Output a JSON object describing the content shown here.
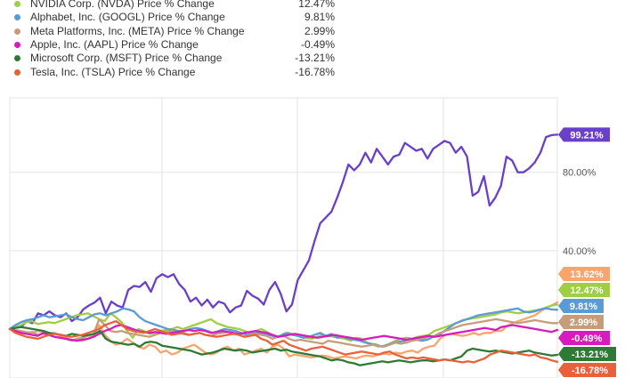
{
  "chart_data": {
    "type": "line",
    "legend_position": "top-left",
    "grid": true,
    "y_unit": "%",
    "ylim": [
      -25,
      118
    ],
    "y_ticks": [
      {
        "value": 80,
        "label": "80.00%"
      },
      {
        "value": 40,
        "label": "40.00%"
      }
    ],
    "series": [
      {
        "key": "amzn",
        "name": "",
        "color": "#6a3fc9",
        "end_label": "99.21%",
        "values": [
          0,
          1.5,
          1,
          4,
          3,
          8,
          7,
          9,
          7,
          6,
          8,
          4,
          6,
          10,
          12,
          13.5,
          16,
          8,
          14,
          12,
          11,
          20,
          22,
          21.5,
          24,
          19,
          26,
          28,
          26.5,
          28,
          23,
          20,
          14,
          16,
          12,
          15,
          11,
          14,
          13,
          8.5,
          11,
          12,
          19.5,
          17,
          15.5,
          12.5,
          20,
          24,
          18,
          9,
          12.5,
          25,
          30,
          35,
          45,
          54,
          57,
          60,
          67,
          75,
          84,
          81,
          84,
          90,
          85,
          92,
          88,
          84,
          88,
          89,
          95,
          93,
          91,
          92,
          87,
          92,
          94,
          96,
          95,
          90,
          93,
          88,
          68,
          70,
          78,
          63,
          67,
          73,
          88,
          86,
          80,
          80,
          82,
          85,
          90,
          98,
          99,
          99.21
        ]
      },
      {
        "key": "amd",
        "name": "",
        "color": "#f7a46d",
        "end_label": "13.62%",
        "values": [
          0,
          -0.5,
          -1,
          -1.5,
          -2,
          -1,
          -1.5,
          -2.5,
          -2,
          -3.5,
          -4,
          -6,
          -5.5,
          -6,
          -5,
          -3,
          2,
          -3,
          -6,
          -8,
          -7,
          -5,
          -7,
          -9,
          -10,
          -8,
          -9,
          -12,
          -11,
          -13,
          -12,
          -10,
          -9,
          -8,
          -10,
          -12,
          -13,
          -12,
          -10,
          -9,
          -11,
          -10,
          -13,
          -12,
          -11,
          -10,
          -12,
          -9,
          -8,
          -10,
          -14,
          -13,
          -13.5,
          -14,
          -14.5,
          -14,
          -13.5,
          -14,
          -15,
          -14.5,
          -14,
          -14.5,
          -15,
          -14,
          -13.5,
          -14,
          -13,
          -12.5,
          -13,
          -12,
          -12.5,
          -11.5,
          -11,
          -12,
          -10,
          -9,
          -8.5,
          -5,
          -3,
          -2.5,
          -3,
          -3.5,
          -3,
          -2,
          -3,
          -2,
          -2,
          -1,
          -1,
          1.5,
          3,
          4,
          5,
          6,
          7,
          9,
          11,
          12,
          13.62
        ]
      },
      {
        "key": "nvda",
        "name": "NVIDIA Corp. (NVDA) Price % Change",
        "color": "#9fce43",
        "end_label": "12.47%",
        "legend_value": "12.47%",
        "values": [
          0,
          1,
          2,
          3.5,
          4,
          2.5,
          3,
          3.5,
          3,
          4,
          5,
          6,
          7,
          7.5,
          8,
          6.5,
          5,
          4,
          8,
          6,
          3.5,
          -1,
          -4.5,
          0,
          -1,
          -2.5,
          -2,
          -1,
          -0.5,
          0,
          1,
          0,
          1,
          2,
          3,
          4,
          5,
          3,
          2,
          1,
          0.5,
          0,
          -1,
          -2,
          -1,
          0,
          -1.5,
          -3,
          -4,
          -2.5,
          -2,
          -3,
          -4,
          -4.5,
          -5,
          -4,
          -3,
          -3.5,
          -4,
          -4.5,
          -5,
          -6,
          -4.5,
          -5,
          -7,
          -8,
          -9,
          -8.5,
          -7.5,
          -6,
          -5,
          -4.5,
          -5,
          -4,
          -3.5,
          -3,
          -1,
          0,
          1,
          2,
          3,
          4.5,
          5,
          5.5,
          6,
          6.5,
          7,
          7.5,
          8.5,
          9,
          8.5,
          8,
          8.5,
          9,
          9.5,
          10,
          11,
          12,
          12.47
        ]
      },
      {
        "key": "googl",
        "name": "Alphabet, Inc. (GOOGL) Price % Change",
        "color": "#5b9bd5",
        "end_label": "9.81%",
        "legend_value": "9.81%",
        "values": [
          0,
          2,
          3.5,
          4.5,
          5,
          6,
          7,
          6,
          6.5,
          7,
          7.5,
          6,
          5,
          4.5,
          6,
          7.5,
          8,
          7,
          8,
          9,
          10.5,
          10,
          9,
          6,
          4,
          3,
          2,
          1,
          0,
          -0.5,
          -1,
          -1,
          0,
          0.5,
          0,
          -1,
          -2,
          -1,
          0,
          -0.5,
          -1,
          -2,
          -3,
          -2.5,
          -2,
          -2.5,
          -3,
          -4,
          -3.5,
          -2,
          -3,
          -3.5,
          -4.5,
          -4,
          -3,
          -2,
          -3.5,
          -2.5,
          -4.5,
          -4,
          -5,
          -5.5,
          -6,
          -7,
          -7.5,
          -8,
          -9,
          -8,
          -7,
          -6.5,
          -6,
          -5,
          -5.5,
          -6,
          -5.5,
          -4,
          -3,
          -1,
          1,
          3,
          4,
          5,
          6,
          7,
          7.5,
          8,
          8.5,
          9,
          9.5,
          10,
          10.5,
          9,
          8.5,
          9,
          10,
          10.5,
          10,
          9.81
        ]
      },
      {
        "key": "meta",
        "name": "Meta Platforms, Inc. (META) Price % Change",
        "color": "#c69c79",
        "end_label": "2.99%",
        "legend_value": "2.99%",
        "values": [
          0,
          -1,
          -1,
          -2,
          -1.5,
          -3,
          -2.5,
          -3,
          -4,
          -4.5,
          -5,
          -6,
          -5,
          -4.5,
          -3.5,
          -2.5,
          5,
          2,
          -1,
          -1.5,
          -1,
          -2,
          -2.5,
          -3,
          -3.5,
          -4,
          -3,
          -2,
          -1.5,
          -1,
          -2,
          -2.5,
          -3,
          -2.5,
          -2,
          -3,
          -3.5,
          -2.5,
          -2,
          -1.5,
          -2,
          -3,
          -4,
          -3,
          -2.5,
          -3,
          -3.5,
          -5,
          -4,
          -3.5,
          -5,
          -6,
          -5.5,
          -6,
          -6.5,
          -7,
          -7.5,
          -6,
          -6.5,
          -7,
          -7.5,
          -8,
          -8.5,
          -9,
          -8.5,
          -8,
          -8.5,
          -9,
          -8,
          -7,
          -7.5,
          -7,
          -6,
          -5.5,
          -5,
          -4,
          -3.5,
          -2,
          -1,
          0,
          1,
          2,
          2.5,
          3,
          3.5,
          4,
          4.5,
          5,
          4.5,
          4,
          3.5,
          3,
          3.5,
          4,
          4.5,
          4,
          3.5,
          3,
          2.99
        ]
      },
      {
        "key": "aapl",
        "name": "Apple, Inc. (AAPL) Price % Change",
        "color": "#d81bbf",
        "end_label": "-0.49%",
        "legend_value": "-0.49%",
        "values": [
          0,
          -1,
          -2,
          -2.5,
          -3,
          -3.5,
          -2,
          -3,
          -4,
          -4.5,
          -5,
          -5.5,
          -6,
          -5.5,
          -5,
          -4,
          -2.5,
          -1,
          0,
          1.5,
          2,
          1,
          0,
          -1,
          -1.5,
          -2,
          -1.5,
          -2,
          -2.5,
          -2,
          -1.5,
          -1,
          -0.5,
          -1,
          -0.5,
          -1,
          -2,
          -1.5,
          -1,
          -1.5,
          -2,
          -2.5,
          -2,
          -1.5,
          -1,
          -1.5,
          -2,
          -3,
          -4,
          -3.5,
          -3,
          -2.5,
          -3,
          -3.5,
          -4,
          -4.5,
          -4,
          -3.5,
          -3,
          -3.5,
          -4,
          -4.5,
          -5,
          -5.5,
          -5,
          -4.5,
          -4,
          -3.5,
          -4,
          -4.5,
          -5,
          -5.5,
          -5,
          -4.5,
          -4,
          -3.5,
          -4,
          -3.5,
          -3,
          -2.5,
          -2,
          -1.5,
          -1,
          -0.5,
          0,
          0.5,
          0,
          -0.5,
          1,
          1.5,
          2,
          1.5,
          1,
          0.5,
          0,
          -0.5,
          -1,
          -1.5,
          -0.49
        ]
      },
      {
        "key": "msft",
        "name": "Microsoft Corp. (MSFT) Price % Change",
        "color": "#2d7a34",
        "end_label": "-13.21%",
        "legend_value": "-13.21%",
        "values": [
          0,
          0.5,
          1,
          0.5,
          0,
          -0.5,
          -1,
          -2,
          -2.5,
          -3,
          -3.5,
          -2.5,
          -3,
          -3.5,
          -3,
          -2.5,
          -1,
          -5,
          -6.5,
          -7,
          -7.5,
          -8,
          -7.5,
          -9,
          -7,
          -6.5,
          -7,
          -8.5,
          -9,
          -9.5,
          -10,
          -10.5,
          -11,
          -12,
          -13,
          -12.5,
          -12,
          -11,
          -10,
          -10.5,
          -11,
          -10.5,
          -11,
          -12,
          -11.5,
          -11,
          -10.5,
          -10,
          -11,
          -10.5,
          -11.5,
          -12,
          -12.5,
          -13,
          -13.5,
          -14,
          -15,
          -16,
          -15.5,
          -16,
          -17,
          -17.5,
          -18.5,
          -18,
          -17.5,
          -17,
          -16.5,
          -17,
          -16.5,
          -16,
          -16.5,
          -17,
          -16.5,
          -16,
          -16,
          -16.5,
          -16,
          -15.5,
          -16,
          -15,
          -14,
          -11,
          -10,
          -10.5,
          -11,
          -11.5,
          -11,
          -11.5,
          -12,
          -12.5,
          -12,
          -11.5,
          -11,
          -12,
          -12.5,
          -13,
          -13.5,
          -13.21
        ]
      },
      {
        "key": "tsla",
        "name": "Tesla, Inc. (TSLA) Price % Change",
        "color": "#e8613b",
        "end_label": "-16.78%",
        "legend_value": "-16.78%",
        "values": [
          0,
          -2,
          -3,
          -4,
          -4.5,
          -5,
          -4,
          -3,
          -2.5,
          -3,
          -3.5,
          -4,
          -3.5,
          -3,
          -2,
          -1,
          0,
          2,
          3,
          4,
          2,
          0,
          -1,
          -1.5,
          -2,
          -1,
          0,
          -1,
          -2,
          -3,
          -2.5,
          -2,
          -3,
          -2.5,
          -2,
          -3,
          -3.5,
          -4,
          -3.5,
          -3,
          -2.5,
          -3,
          -4,
          -3.5,
          -3,
          -5,
          -6,
          -8,
          -7,
          -6,
          -8,
          -9,
          -10,
          -11,
          -10,
          -9.5,
          -9,
          -10,
          -11,
          -12,
          -13,
          -12.5,
          -12,
          -11.5,
          -12,
          -12.5,
          -13,
          -12,
          -11.5,
          -13,
          -14,
          -15,
          -14.5,
          -15,
          -14.5,
          -15,
          -15.5,
          -16,
          -15.5,
          -16,
          -16.5,
          -17,
          -16.5,
          -17,
          -16,
          -15,
          -13,
          -12,
          -11,
          -11.5,
          -12,
          -12.5,
          -13,
          -13.5,
          -13,
          -14.5,
          -15,
          -16,
          -16.78
        ]
      }
    ]
  }
}
